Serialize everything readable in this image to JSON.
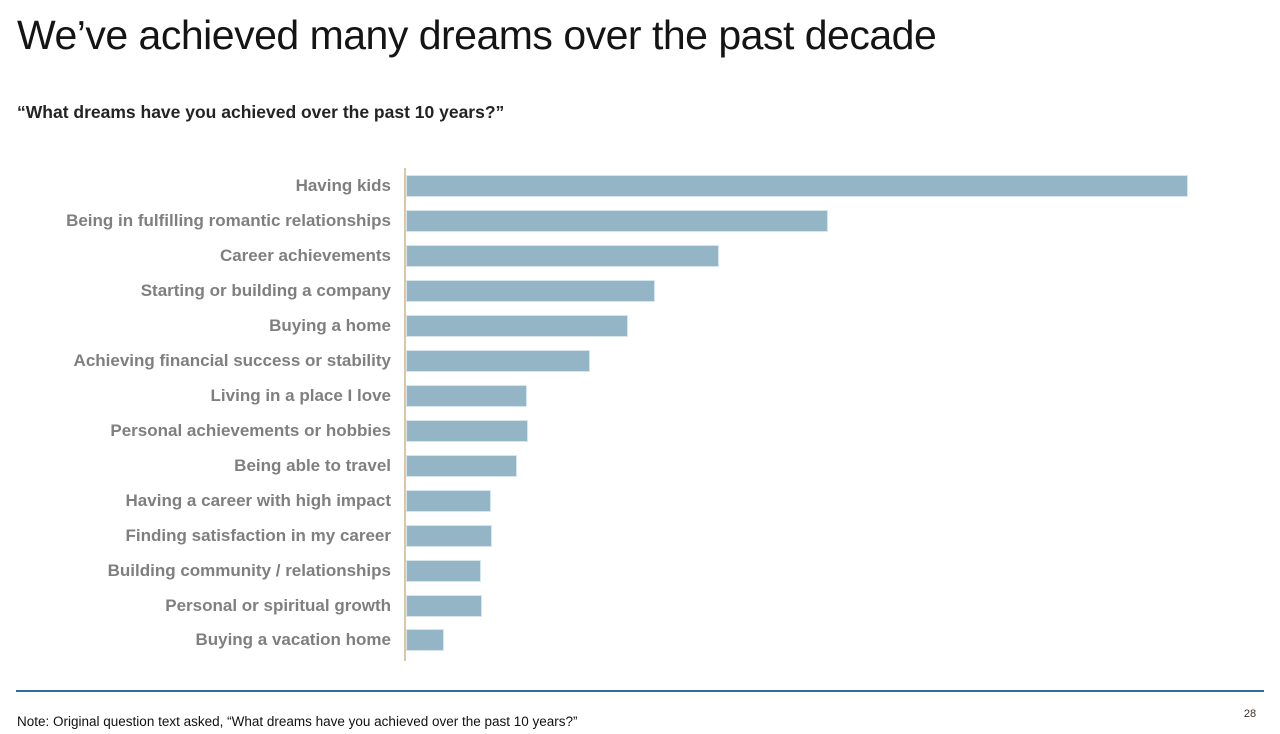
{
  "slide": {
    "title": "We’ve achieved many dreams over the past decade",
    "subtitle": "“What dreams have you achieved over the past 10 years?”",
    "footnote": "Note: Original question text asked, “What dreams have you achieved over the past 10 years?”",
    "page_number": "28"
  },
  "colors": {
    "bar_fill": "#93b5c6",
    "bar_border": "#d7e5ed",
    "axis_line": "#d9c7a9",
    "divider": "#2e6d9c",
    "category_label_text": "#7f7f7f",
    "title_text": "#141414"
  },
  "chart_data": {
    "type": "bar",
    "orientation": "horizontal",
    "title": "",
    "xlabel": "",
    "ylabel": "",
    "grid": false,
    "legend": false,
    "axis_scale_shown": false,
    "value_note": "No numeric axis or data labels visible; values are relative bar lengths normalized so the longest bar = 100.",
    "xlim": [
      0,
      109
    ],
    "categories": [
      "Having kids",
      "Being in fulfilling romantic relationships",
      "Career achievements",
      "Starting or building a company",
      "Buying a home",
      "Achieving financial success or stability",
      "Living in a place I love",
      "Personal achievements or hobbies",
      "Being able to travel",
      "Having a career with high impact",
      "Finding satisfaction in my career",
      "Building community / relationships",
      "Personal or spiritual growth",
      "Buying a vacation home"
    ],
    "values": [
      100,
      54,
      40,
      31.8,
      28.4,
      23.5,
      15.5,
      15.6,
      14.2,
      10.9,
      11.0,
      9.6,
      9.7,
      4.9
    ]
  }
}
